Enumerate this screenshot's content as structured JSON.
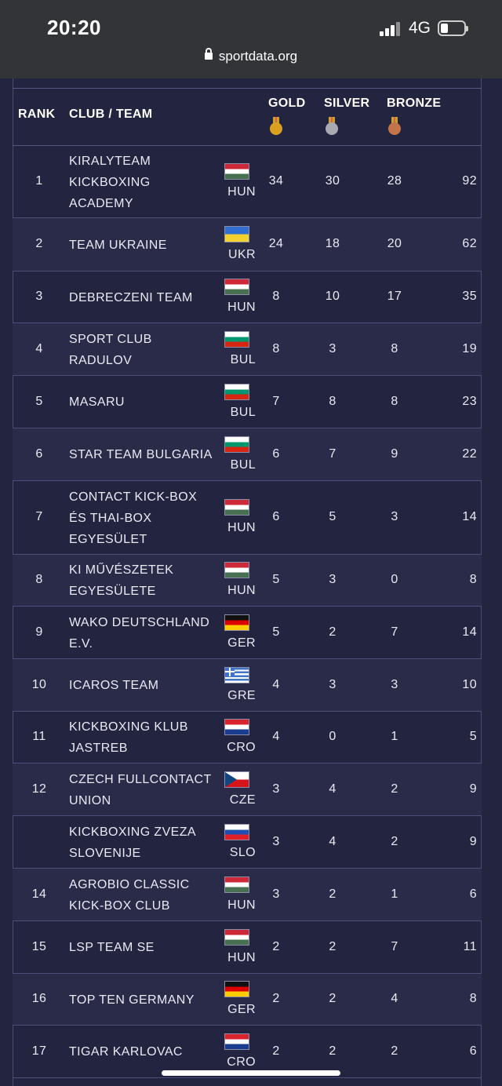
{
  "status": {
    "time": "20:20",
    "network": "4G"
  },
  "browser": {
    "url": "sportdata.org"
  },
  "table": {
    "headers": {
      "rank": "RANK",
      "club": "CLUB / TEAM",
      "gold": "GOLD",
      "silver": "SILVER",
      "bronze": "BRONZE"
    },
    "medal_colors": {
      "gold": "#d9a11f",
      "silver": "#a9a9b3",
      "bronze": "#c4744a"
    },
    "rows": [
      {
        "rank": "1",
        "club": [
          "KIRALYTEAM",
          "KICKBOXING",
          "ACADEMY"
        ],
        "country": "HUN",
        "flag": "hun-flag",
        "gold": "34",
        "silver": "30",
        "bronze": "28",
        "total": "92"
      },
      {
        "rank": "2",
        "club": [
          "TEAM UKRAINE"
        ],
        "country": "UKR",
        "flag": "ukr-flag",
        "gold": "24",
        "silver": "18",
        "bronze": "20",
        "total": "62"
      },
      {
        "rank": "3",
        "club": [
          "DEBRECZENI TEAM"
        ],
        "country": "HUN",
        "flag": "hun-flag",
        "gold": "8",
        "silver": "10",
        "bronze": "17",
        "total": "35"
      },
      {
        "rank": "4",
        "club": [
          "SPORT CLUB",
          "RADULOV"
        ],
        "country": "BUL",
        "flag": "bul-flag",
        "gold": "8",
        "silver": "3",
        "bronze": "8",
        "total": "19"
      },
      {
        "rank": "5",
        "club": [
          "MASARU"
        ],
        "country": "BUL",
        "flag": "bul-flag",
        "gold": "7",
        "silver": "8",
        "bronze": "8",
        "total": "23"
      },
      {
        "rank": "6",
        "club": [
          "STAR TEAM BULGARIA"
        ],
        "country": "BUL",
        "flag": "bul-flag",
        "gold": "6",
        "silver": "7",
        "bronze": "9",
        "total": "22"
      },
      {
        "rank": "7",
        "club": [
          "CONTACT KICK-BOX",
          "ÉS THAI-BOX",
          "EGYESÜLET"
        ],
        "country": "HUN",
        "flag": "hun-flag",
        "gold": "6",
        "silver": "5",
        "bronze": "3",
        "total": "14"
      },
      {
        "rank": "8",
        "club": [
          "KI MŰVÉSZETEK",
          "EGYESÜLETE"
        ],
        "country": "HUN",
        "flag": "hun-flag",
        "gold": "5",
        "silver": "3",
        "bronze": "0",
        "total": "8"
      },
      {
        "rank": "9",
        "club": [
          "WAKO DEUTSCHLAND",
          "E.V."
        ],
        "country": "GER",
        "flag": "ger-flag",
        "gold": "5",
        "silver": "2",
        "bronze": "7",
        "total": "14"
      },
      {
        "rank": "10",
        "club": [
          "ICAROS TEAM"
        ],
        "country": "GRE",
        "flag": "gre-flag",
        "gold": "4",
        "silver": "3",
        "bronze": "3",
        "total": "10"
      },
      {
        "rank": "11",
        "club": [
          "KICKBOXING KLUB",
          "JASTREB"
        ],
        "country": "CRO",
        "flag": "cro-flag",
        "gold": "4",
        "silver": "0",
        "bronze": "1",
        "total": "5"
      },
      {
        "rank": "12",
        "club": [
          "CZECH FULLCONTACT",
          "UNION"
        ],
        "country": "CZE",
        "flag": "cze-flag",
        "gold": "3",
        "silver": "4",
        "bronze": "2",
        "total": "9"
      },
      {
        "rank": "",
        "club": [
          "KICKBOXING ZVEZA",
          "SLOVENIJE"
        ],
        "country": "SLO",
        "flag": "slo-flag",
        "gold": "3",
        "silver": "4",
        "bronze": "2",
        "total": "9"
      },
      {
        "rank": "14",
        "club": [
          "AGROBIO CLASSIC",
          "KICK-BOX CLUB"
        ],
        "country": "HUN",
        "flag": "hun-flag",
        "gold": "3",
        "silver": "2",
        "bronze": "1",
        "total": "6"
      },
      {
        "rank": "15",
        "club": [
          "LSP TEAM SE"
        ],
        "country": "HUN",
        "flag": "hun-flag",
        "gold": "2",
        "silver": "2",
        "bronze": "7",
        "total": "11"
      },
      {
        "rank": "16",
        "club": [
          "TOP TEN GERMANY"
        ],
        "country": "GER",
        "flag": "ger-flag",
        "gold": "2",
        "silver": "2",
        "bronze": "4",
        "total": "8"
      },
      {
        "rank": "17",
        "club": [
          "TIGAR KARLOVAC"
        ],
        "country": "CRO",
        "flag": "cro-flag",
        "gold": "2",
        "silver": "2",
        "bronze": "2",
        "total": "6"
      }
    ]
  }
}
